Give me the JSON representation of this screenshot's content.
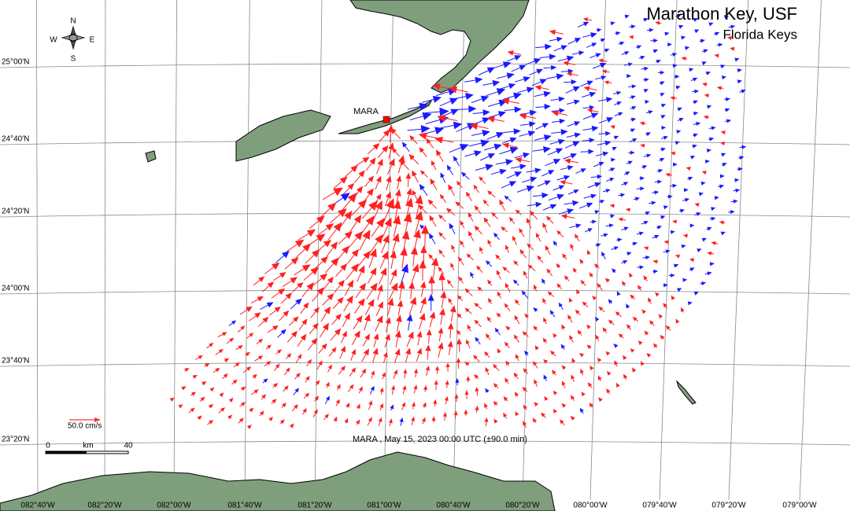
{
  "header": {
    "title": "Marathon Key, USF",
    "subtitle": "Florida Keys"
  },
  "compass": {
    "n": "N",
    "s": "S",
    "w": "W",
    "e": "E"
  },
  "site": {
    "label": "MARA"
  },
  "grid": {
    "lat_labels": [
      "25°00'N",
      "24°40'N",
      "24°20'N",
      "24°00'N",
      "23°40'N",
      "23°20'N"
    ],
    "lon_labels": [
      "082°40'W",
      "082°20'W",
      "082°00'W",
      "081°40'W",
      "081°20'W",
      "081°00'W",
      "080°40'W",
      "080°20'W",
      "080°00'W",
      "079°40'W",
      "079°20'W",
      "079°00'W"
    ]
  },
  "scale": {
    "speed_label": "50.0 cm/s",
    "start": "0",
    "unit": "km",
    "end": "40"
  },
  "caption": "MARA , May 15, 2023 00:00 UTC (±90.0 min)"
}
